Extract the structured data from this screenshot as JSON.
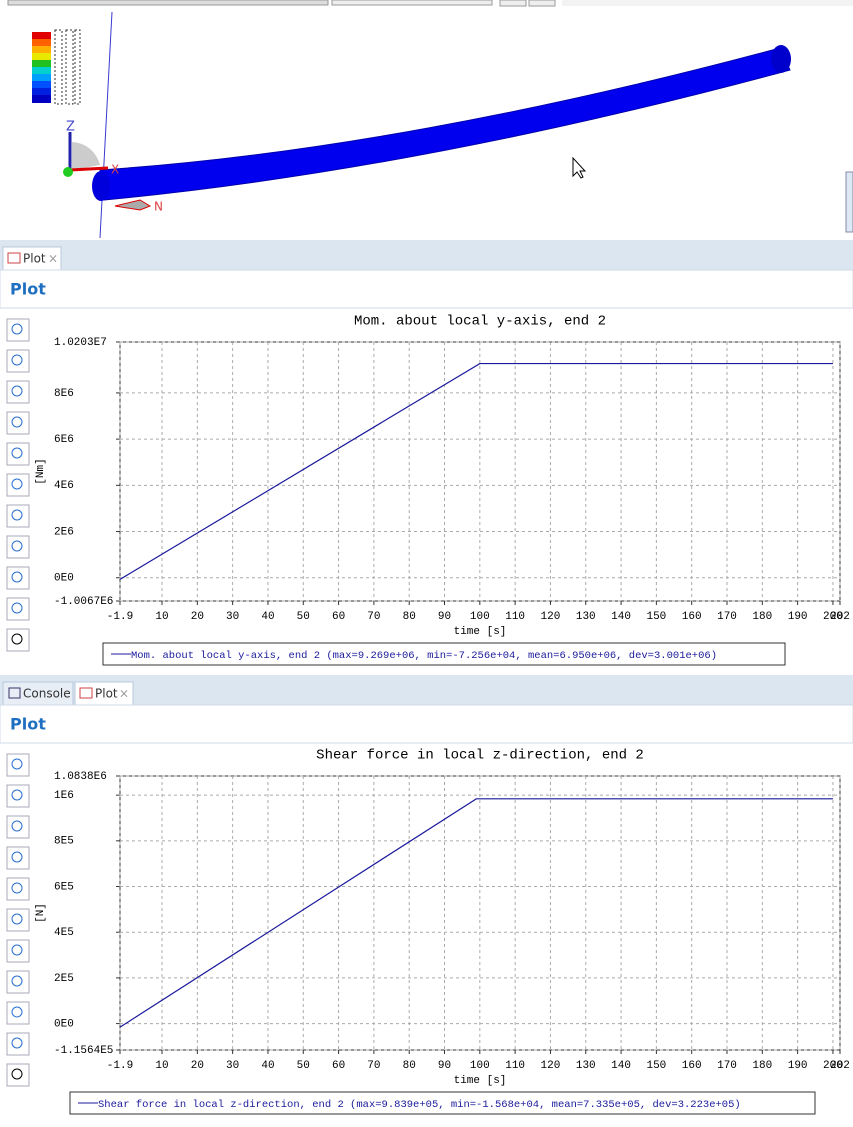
{
  "ui": {
    "top_tabs": [
      "Plot"
    ],
    "top_panel_title": "Plot",
    "bottom_tabs": [
      "Console",
      "Plot"
    ],
    "bottom_panel_title": "Plot"
  },
  "chart_data": [
    {
      "type": "line",
      "title": "Mom. about local y-axis, end 2",
      "y_label": "[Nm]",
      "x_label": "time [s]",
      "x": [
        -1.9,
        100,
        200
      ],
      "series": [
        {
          "name": "Mom. about local y-axis, end 2 (max=9.269e+06, min=-7.256e+04, mean=6.950e+06, dev=3.001e+06)",
          "color": "#1a1a9c",
          "values": [
            -72560,
            9269000,
            9269000
          ]
        }
      ],
      "xlim": [
        -1.9,
        202
      ],
      "xticks": [
        -1.9,
        10,
        20,
        30,
        40,
        50,
        60,
        70,
        80,
        90,
        100,
        110,
        120,
        130,
        140,
        150,
        160,
        170,
        180,
        190,
        200,
        202
      ],
      "ylim": [
        -1006700,
        10203000
      ],
      "yticks": [
        {
          "value": -1006700,
          "label": "-1.0067E6"
        },
        {
          "value": 0,
          "label": "0E0"
        },
        {
          "value": 2000000,
          "label": "2E6"
        },
        {
          "value": 4000000,
          "label": "4E6"
        },
        {
          "value": 6000000,
          "label": "6E6"
        },
        {
          "value": 8000000,
          "label": "8E6"
        },
        {
          "value": 10203000,
          "label": "1.0203E7"
        }
      ],
      "grid": true
    },
    {
      "type": "line",
      "title": "Shear force in local z-direction, end 2",
      "y_label": "[N]",
      "x_label": "time [s]",
      "x": [
        -1.9,
        99,
        200
      ],
      "series": [
        {
          "name": "Shear force in local z-direction, end 2 (max=9.839e+05, min=-1.568e+04, mean=7.335e+05, dev=3.223e+05)",
          "color": "#1a1a9c",
          "values": [
            -15680,
            983900,
            983900
          ]
        }
      ],
      "xlim": [
        -1.9,
        202
      ],
      "xticks": [
        -1.9,
        10,
        20,
        30,
        40,
        50,
        60,
        70,
        80,
        90,
        100,
        110,
        120,
        130,
        140,
        150,
        160,
        170,
        180,
        190,
        200,
        202
      ],
      "ylim": [
        -115640,
        1083800
      ],
      "yticks": [
        {
          "value": -115640,
          "label": "-1.1564E5"
        },
        {
          "value": 0,
          "label": "0E0"
        },
        {
          "value": 200000,
          "label": "2E5"
        },
        {
          "value": 400000,
          "label": "4E5"
        },
        {
          "value": 600000,
          "label": "6E5"
        },
        {
          "value": 800000,
          "label": "8E5"
        },
        {
          "value": 1000000,
          "label": "1E6"
        },
        {
          "value": 1083800,
          "label": "1.0838E6"
        }
      ],
      "grid": true
    }
  ]
}
